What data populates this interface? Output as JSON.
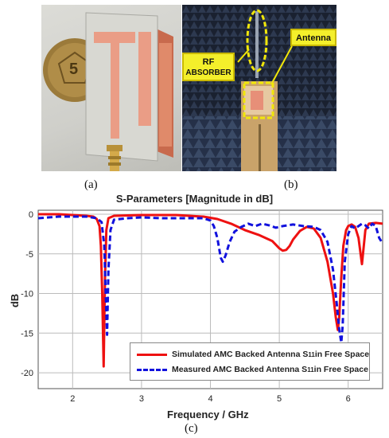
{
  "panels": {
    "a_caption": "(a)",
    "b_caption": "(b)",
    "c_caption": "(c)",
    "coin_text": "5"
  },
  "callouts": {
    "rf_absorber": [
      "RF",
      "ABSORBER"
    ],
    "antenna": "Antenna"
  },
  "colors": {
    "simulated": "#ee1111",
    "measured": "#1111dd",
    "callout_fill": "#f4ef2b",
    "callout_dash": "#f1e70a"
  },
  "chart_data": {
    "type": "line",
    "title": "S-Parameters [Magnitude in dB]",
    "xlabel": "Frequency / GHz",
    "ylabel": "dB",
    "xlim": [
      1.5,
      6.5
    ],
    "ylim": [
      -22,
      0.5
    ],
    "xticks": [
      2,
      3,
      4,
      5,
      6
    ],
    "yticks": [
      0,
      -5,
      -10,
      -15,
      -20
    ],
    "grid": true,
    "legend_position": "bottom-right",
    "series": [
      {
        "name": "Simulated AMC Backed Antenna S11 in Free Space",
        "name_main": "Simulated AMC Backed Antenna S",
        "name_sub": "11",
        "name_tail": " in Free Space",
        "style": "solid",
        "x": [
          1.5,
          1.8,
          2.0,
          2.2,
          2.3,
          2.35,
          2.39,
          2.41,
          2.43,
          2.45,
          2.47,
          2.49,
          2.52,
          2.6,
          3.0,
          3.5,
          3.9,
          4.1,
          4.3,
          4.5,
          4.7,
          4.9,
          5.0,
          5.05,
          5.1,
          5.15,
          5.2,
          5.3,
          5.4,
          5.5,
          5.6,
          5.7,
          5.78,
          5.82,
          5.85,
          5.87,
          5.9,
          5.93,
          5.97,
          6.0,
          6.05,
          6.1,
          6.15,
          6.18,
          6.2,
          6.22,
          6.25,
          6.3,
          6.4,
          6.5
        ],
        "y": [
          0,
          0,
          -0.1,
          -0.2,
          -0.3,
          -0.6,
          -1.5,
          -4,
          -10,
          -19.2,
          -8,
          -2,
          -0.5,
          -0.2,
          -0.1,
          -0.1,
          -0.3,
          -0.6,
          -1.2,
          -2.0,
          -2.6,
          -3.4,
          -4.3,
          -4.6,
          -4.5,
          -4.0,
          -3.2,
          -2.1,
          -1.6,
          -1.8,
          -3.0,
          -6,
          -10,
          -13,
          -14.6,
          -13,
          -8,
          -4,
          -2,
          -1.5,
          -1.3,
          -1.6,
          -3,
          -5,
          -6.3,
          -4.5,
          -2,
          -1.2,
          -1.1,
          -1.2
        ]
      },
      {
        "name": "Measured AMC Backed Antenna S11 in Free Space",
        "name_main": "Measured AMC Backed Antenna S",
        "name_sub": "11",
        "name_tail": " in Free Space",
        "style": "dashed",
        "x": [
          1.5,
          1.8,
          2.0,
          2.2,
          2.35,
          2.42,
          2.46,
          2.48,
          2.5,
          2.52,
          2.55,
          2.6,
          2.8,
          3.0,
          3.3,
          3.6,
          3.9,
          4.0,
          4.05,
          4.1,
          4.15,
          4.18,
          4.22,
          4.28,
          4.35,
          4.45,
          4.55,
          4.65,
          4.75,
          4.85,
          4.95,
          5.05,
          5.2,
          5.35,
          5.5,
          5.6,
          5.7,
          5.78,
          5.83,
          5.87,
          5.9,
          5.92,
          5.95,
          6.0,
          6.05,
          6.1,
          6.15,
          6.2,
          6.25,
          6.3,
          6.35,
          6.4,
          6.45,
          6.5
        ],
        "y": [
          -0.5,
          -0.3,
          -0.3,
          -0.3,
          -0.5,
          -1,
          -4,
          -10,
          -15.2,
          -7,
          -2,
          -0.7,
          -0.5,
          -0.4,
          -0.5,
          -0.5,
          -0.5,
          -0.8,
          -1.5,
          -3,
          -5.5,
          -6,
          -5.2,
          -3.5,
          -2.2,
          -1.6,
          -1.2,
          -1.5,
          -1.2,
          -1.4,
          -1.7,
          -1.5,
          -1.3,
          -1.5,
          -1.6,
          -2.0,
          -3.5,
          -7,
          -11,
          -14.5,
          -16.2,
          -14,
          -6,
          -2.5,
          -1.5,
          -1.8,
          -1.5,
          -1.2,
          -1.4,
          -1.8,
          -1.2,
          -1.5,
          -3,
          -3.7
        ]
      }
    ]
  }
}
